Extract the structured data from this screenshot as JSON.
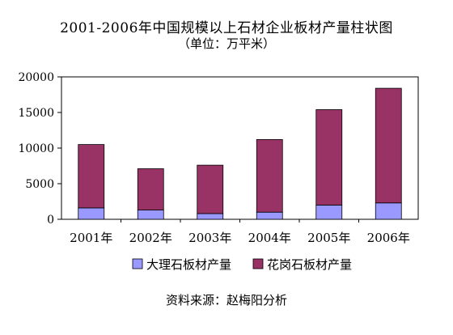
{
  "chart_data": {
    "type": "bar",
    "stacked": true,
    "title": "2001-2006年中国规模以上石材企业板材产量柱状图",
    "subtitle": "（单位：万平米）",
    "source": "资料来源：赵梅阳分析",
    "categories": [
      "2001年",
      "2002年",
      "2003年",
      "2004年",
      "2005年",
      "2006年"
    ],
    "ylim": [
      0,
      20000
    ],
    "yticks": [
      0,
      5000,
      10000,
      15000,
      20000
    ],
    "grid": false,
    "legend_position": "bottom",
    "series": [
      {
        "name": "大理石板材产量",
        "color": "#9999ff",
        "values": [
          1600,
          1300,
          800,
          1000,
          2000,
          2300
        ]
      },
      {
        "name": "花岗石板材产量",
        "color": "#993366",
        "values": [
          8900,
          5800,
          6800,
          10200,
          13400,
          16100
        ]
      }
    ]
  }
}
